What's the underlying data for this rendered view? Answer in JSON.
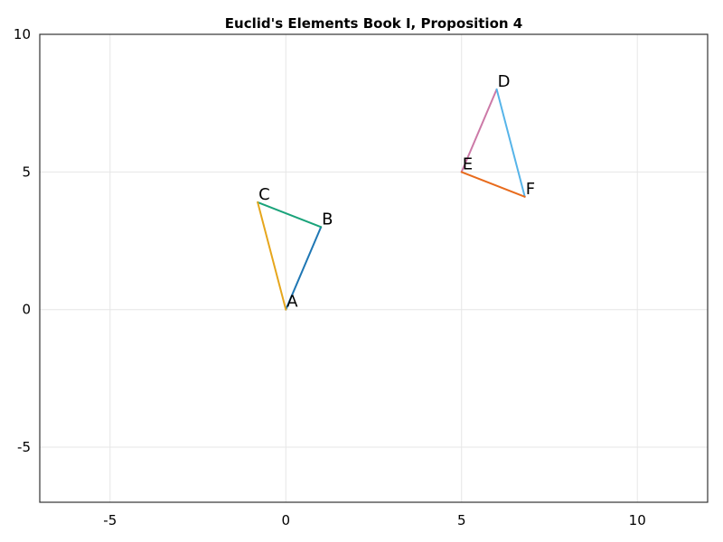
{
  "chart_data": {
    "type": "line",
    "title": "Euclid's Elements Book I, Proposition 4",
    "xlabel": "",
    "ylabel": "",
    "xlim": [
      -7,
      12
    ],
    "ylim": [
      -7,
      10
    ],
    "xticks": [
      -5,
      0,
      5,
      10
    ],
    "yticks": [
      -5,
      0,
      5,
      10
    ],
    "grid": true,
    "points": [
      {
        "label": "A",
        "x": 0,
        "y": 0
      },
      {
        "label": "B",
        "x": 1,
        "y": 3
      },
      {
        "label": "C",
        "x": -0.8,
        "y": 3.9
      },
      {
        "label": "D",
        "x": 6,
        "y": 8
      },
      {
        "label": "E",
        "x": 5,
        "y": 5
      },
      {
        "label": "F",
        "x": 6.8,
        "y": 4.1
      }
    ],
    "series": [
      {
        "x": [
          0,
          1
        ],
        "y": [
          0,
          3
        ],
        "color": "#1f77b4"
      },
      {
        "x": [
          1,
          -0.8
        ],
        "y": [
          3,
          3.9
        ],
        "color": "#1aa37a"
      },
      {
        "x": [
          -0.8,
          0
        ],
        "y": [
          3.9,
          0
        ],
        "color": "#e6a61c"
      },
      {
        "x": [
          5,
          6
        ],
        "y": [
          5,
          8
        ],
        "color": "#cc79a7"
      },
      {
        "x": [
          6,
          6.8
        ],
        "y": [
          8,
          4.1
        ],
        "color": "#56b4e9"
      },
      {
        "x": [
          6.8,
          5
        ],
        "y": [
          4.1,
          5
        ],
        "color": "#e86b1c"
      }
    ]
  }
}
